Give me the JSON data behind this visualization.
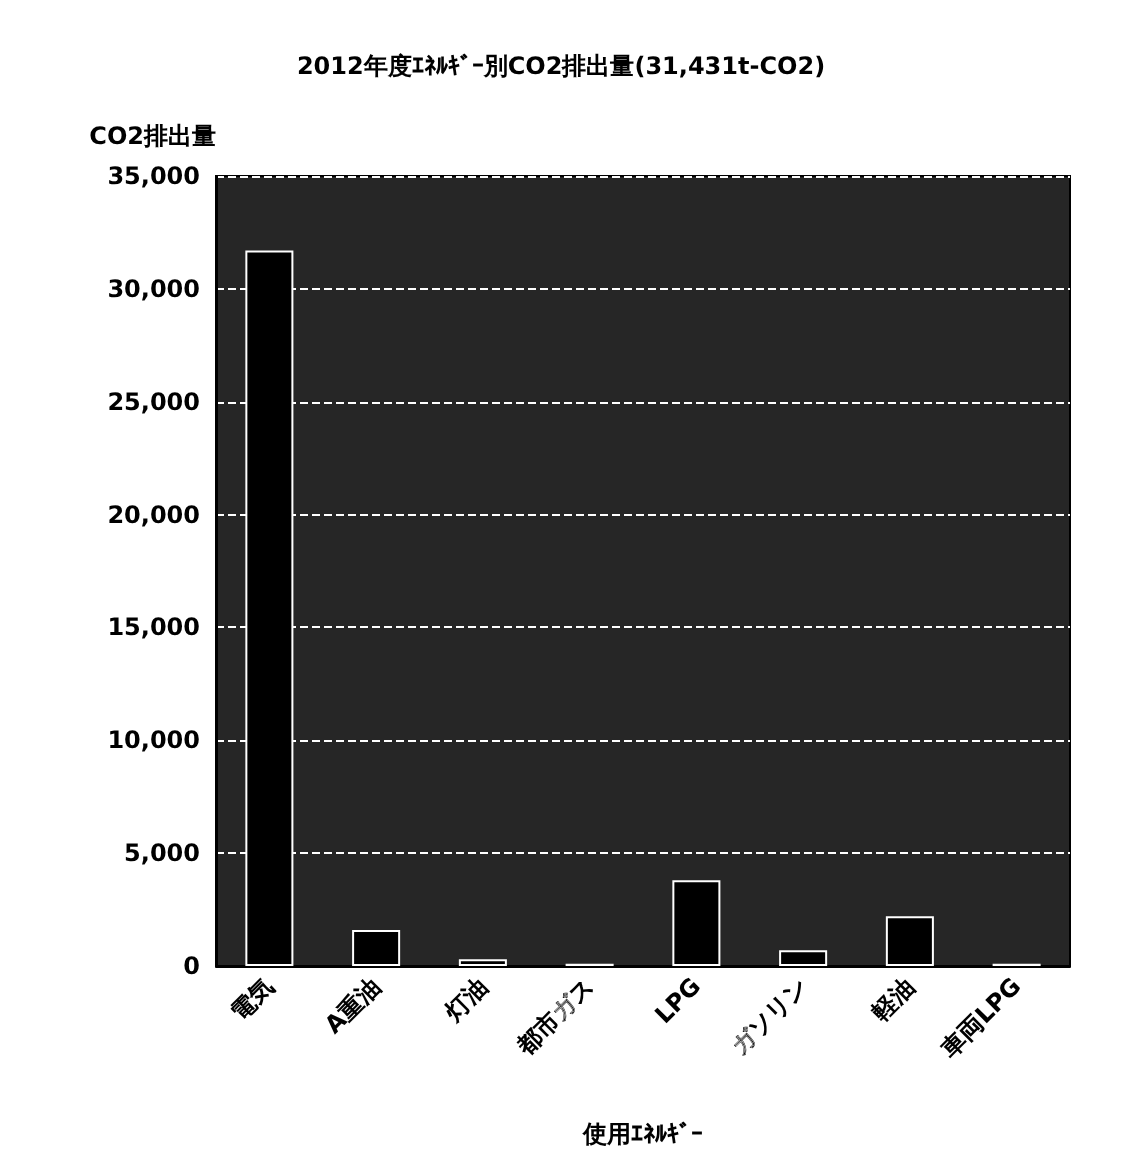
{
  "chart_data": {
    "type": "bar",
    "title": "2012年度ｴﾈﾙｷﾞｰ別CO2排出量(31,431t-CO2)",
    "ylabel": "CO2排出量",
    "xlabel": "使用ｴﾈﾙｷﾞｰ",
    "categories": [
      "電気",
      "A重油",
      "灯油",
      "都市ガス",
      "LPG",
      "ガソリン",
      "軽油",
      "車両LPG"
    ],
    "values": [
      31700,
      1600,
      300,
      100,
      3800,
      700,
      2200,
      100
    ],
    "color": "#000000",
    "ylim": [
      0,
      35000
    ],
    "yticks": [
      0,
      {
        "value": 5000,
        "label": "5,000"
      },
      {
        "value": 10000,
        "label": "10,000"
      },
      {
        "value": 15000,
        "label": "15,000"
      },
      {
        "value": 20000,
        "label": "20,000"
      },
      {
        "value": 25000,
        "label": "25,000"
      },
      {
        "value": 30000,
        "label": "30,000"
      },
      {
        "value": 35000,
        "label": "35,000"
      }
    ],
    "grid": "y"
  }
}
